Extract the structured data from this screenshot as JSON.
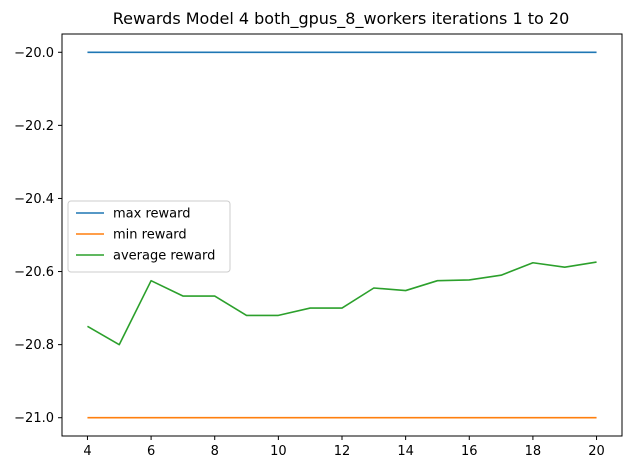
{
  "chart_data": {
    "type": "line",
    "title": "Rewards Model 4 both_gpus_8_workers iterations 1 to 20",
    "xlabel": "",
    "ylabel": "",
    "x": [
      4,
      5,
      6,
      7,
      8,
      9,
      10,
      11,
      12,
      13,
      14,
      15,
      16,
      17,
      18,
      19,
      20
    ],
    "xlim": [
      3.2,
      20.8
    ],
    "ylim": [
      -21.05,
      -19.95
    ],
    "xticks": [
      4,
      6,
      8,
      10,
      12,
      14,
      16,
      18,
      20
    ],
    "xtick_labels": [
      "4",
      "6",
      "8",
      "10",
      "12",
      "14",
      "16",
      "18",
      "20"
    ],
    "yticks": [
      -21.0,
      -20.8,
      -20.6,
      -20.4,
      -20.2,
      -20.0
    ],
    "ytick_labels": [
      "−21.0",
      "−20.8",
      "−20.6",
      "−20.4",
      "−20.2",
      "−20.0"
    ],
    "grid": false,
    "legend_position": "center-left",
    "series": [
      {
        "name": "max reward",
        "color": "#1f77b4",
        "values": [
          -20.0,
          -20.0,
          -20.0,
          -20.0,
          -20.0,
          -20.0,
          -20.0,
          -20.0,
          -20.0,
          -20.0,
          -20.0,
          -20.0,
          -20.0,
          -20.0,
          -20.0,
          -20.0,
          -20.0
        ]
      },
      {
        "name": "min reward",
        "color": "#ff7f0e",
        "values": [
          -21.0,
          -21.0,
          -21.0,
          -21.0,
          -21.0,
          -21.0,
          -21.0,
          -21.0,
          -21.0,
          -21.0,
          -21.0,
          -21.0,
          -21.0,
          -21.0,
          -21.0,
          -21.0,
          -21.0
        ]
      },
      {
        "name": "average reward",
        "color": "#2ca02c",
        "values": [
          -20.75,
          -20.8,
          -20.625,
          -20.667,
          -20.667,
          -20.72,
          -20.72,
          -20.7,
          -20.7,
          -20.645,
          -20.652,
          -20.625,
          -20.623,
          -20.61,
          -20.576,
          -20.588,
          -20.574
        ]
      }
    ]
  }
}
